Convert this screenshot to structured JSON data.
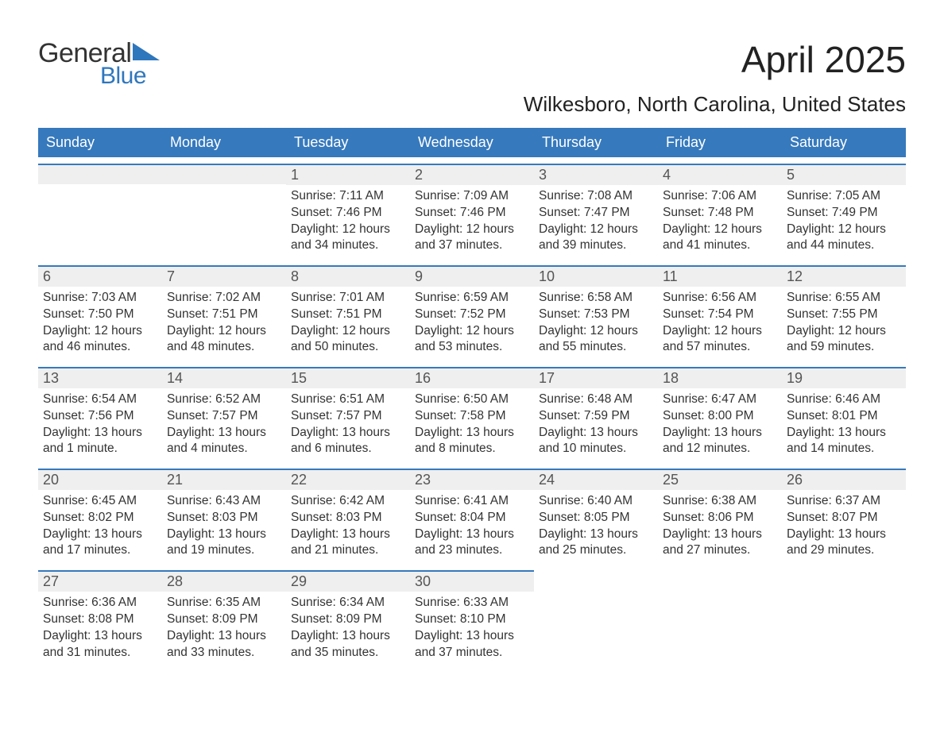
{
  "logo": {
    "general": "General",
    "blue": "Blue",
    "brand_color": "#2f77bd"
  },
  "title": "April 2025",
  "location": "Wilkesboro, North Carolina, United States",
  "colors": {
    "header_bg": "#3679bd",
    "header_text": "#ffffff",
    "row_border": "#3679bd",
    "daynum_bg": "#efefef",
    "body_text": "#333333",
    "page_bg": "#ffffff"
  },
  "day_headers": [
    "Sunday",
    "Monday",
    "Tuesday",
    "Wednesday",
    "Thursday",
    "Friday",
    "Saturday"
  ],
  "weeks": [
    [
      {
        "empty": true
      },
      {
        "empty": true
      },
      {
        "day": "1",
        "sunrise": "Sunrise: 7:11 AM",
        "sunset": "Sunset: 7:46 PM",
        "daylight1": "Daylight: 12 hours",
        "daylight2": "and 34 minutes."
      },
      {
        "day": "2",
        "sunrise": "Sunrise: 7:09 AM",
        "sunset": "Sunset: 7:46 PM",
        "daylight1": "Daylight: 12 hours",
        "daylight2": "and 37 minutes."
      },
      {
        "day": "3",
        "sunrise": "Sunrise: 7:08 AM",
        "sunset": "Sunset: 7:47 PM",
        "daylight1": "Daylight: 12 hours",
        "daylight2": "and 39 minutes."
      },
      {
        "day": "4",
        "sunrise": "Sunrise: 7:06 AM",
        "sunset": "Sunset: 7:48 PM",
        "daylight1": "Daylight: 12 hours",
        "daylight2": "and 41 minutes."
      },
      {
        "day": "5",
        "sunrise": "Sunrise: 7:05 AM",
        "sunset": "Sunset: 7:49 PM",
        "daylight1": "Daylight: 12 hours",
        "daylight2": "and 44 minutes."
      }
    ],
    [
      {
        "day": "6",
        "sunrise": "Sunrise: 7:03 AM",
        "sunset": "Sunset: 7:50 PM",
        "daylight1": "Daylight: 12 hours",
        "daylight2": "and 46 minutes."
      },
      {
        "day": "7",
        "sunrise": "Sunrise: 7:02 AM",
        "sunset": "Sunset: 7:51 PM",
        "daylight1": "Daylight: 12 hours",
        "daylight2": "and 48 minutes."
      },
      {
        "day": "8",
        "sunrise": "Sunrise: 7:01 AM",
        "sunset": "Sunset: 7:51 PM",
        "daylight1": "Daylight: 12 hours",
        "daylight2": "and 50 minutes."
      },
      {
        "day": "9",
        "sunrise": "Sunrise: 6:59 AM",
        "sunset": "Sunset: 7:52 PM",
        "daylight1": "Daylight: 12 hours",
        "daylight2": "and 53 minutes."
      },
      {
        "day": "10",
        "sunrise": "Sunrise: 6:58 AM",
        "sunset": "Sunset: 7:53 PM",
        "daylight1": "Daylight: 12 hours",
        "daylight2": "and 55 minutes."
      },
      {
        "day": "11",
        "sunrise": "Sunrise: 6:56 AM",
        "sunset": "Sunset: 7:54 PM",
        "daylight1": "Daylight: 12 hours",
        "daylight2": "and 57 minutes."
      },
      {
        "day": "12",
        "sunrise": "Sunrise: 6:55 AM",
        "sunset": "Sunset: 7:55 PM",
        "daylight1": "Daylight: 12 hours",
        "daylight2": "and 59 minutes."
      }
    ],
    [
      {
        "day": "13",
        "sunrise": "Sunrise: 6:54 AM",
        "sunset": "Sunset: 7:56 PM",
        "daylight1": "Daylight: 13 hours",
        "daylight2": "and 1 minute."
      },
      {
        "day": "14",
        "sunrise": "Sunrise: 6:52 AM",
        "sunset": "Sunset: 7:57 PM",
        "daylight1": "Daylight: 13 hours",
        "daylight2": "and 4 minutes."
      },
      {
        "day": "15",
        "sunrise": "Sunrise: 6:51 AM",
        "sunset": "Sunset: 7:57 PM",
        "daylight1": "Daylight: 13 hours",
        "daylight2": "and 6 minutes."
      },
      {
        "day": "16",
        "sunrise": "Sunrise: 6:50 AM",
        "sunset": "Sunset: 7:58 PM",
        "daylight1": "Daylight: 13 hours",
        "daylight2": "and 8 minutes."
      },
      {
        "day": "17",
        "sunrise": "Sunrise: 6:48 AM",
        "sunset": "Sunset: 7:59 PM",
        "daylight1": "Daylight: 13 hours",
        "daylight2": "and 10 minutes."
      },
      {
        "day": "18",
        "sunrise": "Sunrise: 6:47 AM",
        "sunset": "Sunset: 8:00 PM",
        "daylight1": "Daylight: 13 hours",
        "daylight2": "and 12 minutes."
      },
      {
        "day": "19",
        "sunrise": "Sunrise: 6:46 AM",
        "sunset": "Sunset: 8:01 PM",
        "daylight1": "Daylight: 13 hours",
        "daylight2": "and 14 minutes."
      }
    ],
    [
      {
        "day": "20",
        "sunrise": "Sunrise: 6:45 AM",
        "sunset": "Sunset: 8:02 PM",
        "daylight1": "Daylight: 13 hours",
        "daylight2": "and 17 minutes."
      },
      {
        "day": "21",
        "sunrise": "Sunrise: 6:43 AM",
        "sunset": "Sunset: 8:03 PM",
        "daylight1": "Daylight: 13 hours",
        "daylight2": "and 19 minutes."
      },
      {
        "day": "22",
        "sunrise": "Sunrise: 6:42 AM",
        "sunset": "Sunset: 8:03 PM",
        "daylight1": "Daylight: 13 hours",
        "daylight2": "and 21 minutes."
      },
      {
        "day": "23",
        "sunrise": "Sunrise: 6:41 AM",
        "sunset": "Sunset: 8:04 PM",
        "daylight1": "Daylight: 13 hours",
        "daylight2": "and 23 minutes."
      },
      {
        "day": "24",
        "sunrise": "Sunrise: 6:40 AM",
        "sunset": "Sunset: 8:05 PM",
        "daylight1": "Daylight: 13 hours",
        "daylight2": "and 25 minutes."
      },
      {
        "day": "25",
        "sunrise": "Sunrise: 6:38 AM",
        "sunset": "Sunset: 8:06 PM",
        "daylight1": "Daylight: 13 hours",
        "daylight2": "and 27 minutes."
      },
      {
        "day": "26",
        "sunrise": "Sunrise: 6:37 AM",
        "sunset": "Sunset: 8:07 PM",
        "daylight1": "Daylight: 13 hours",
        "daylight2": "and 29 minutes."
      }
    ],
    [
      {
        "day": "27",
        "sunrise": "Sunrise: 6:36 AM",
        "sunset": "Sunset: 8:08 PM",
        "daylight1": "Daylight: 13 hours",
        "daylight2": "and 31 minutes."
      },
      {
        "day": "28",
        "sunrise": "Sunrise: 6:35 AM",
        "sunset": "Sunset: 8:09 PM",
        "daylight1": "Daylight: 13 hours",
        "daylight2": "and 33 minutes."
      },
      {
        "day": "29",
        "sunrise": "Sunrise: 6:34 AM",
        "sunset": "Sunset: 8:09 PM",
        "daylight1": "Daylight: 13 hours",
        "daylight2": "and 35 minutes."
      },
      {
        "day": "30",
        "sunrise": "Sunrise: 6:33 AM",
        "sunset": "Sunset: 8:10 PM",
        "daylight1": "Daylight: 13 hours",
        "daylight2": "and 37 minutes."
      },
      {
        "empty": true,
        "noborder": true
      },
      {
        "empty": true,
        "noborder": true
      },
      {
        "empty": true,
        "noborder": true
      }
    ]
  ]
}
